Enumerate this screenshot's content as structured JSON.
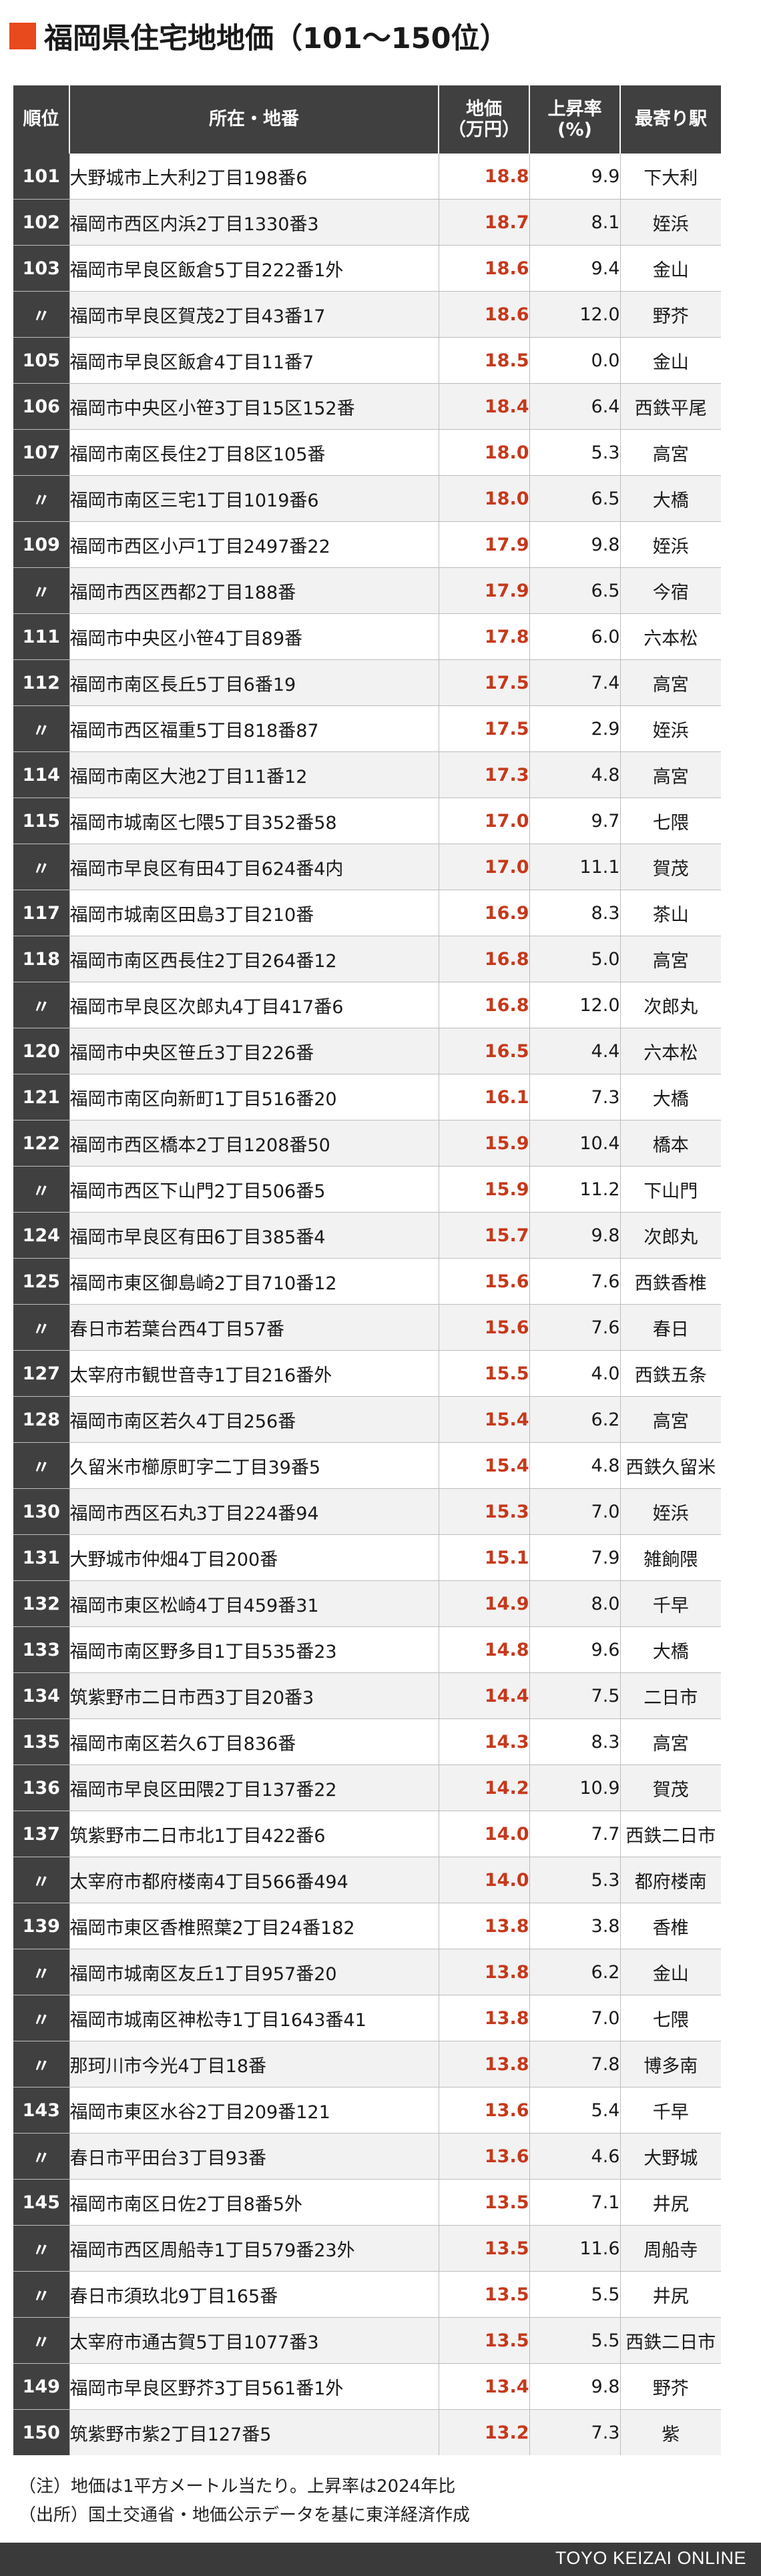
{
  "title": "福岡県住宅地地価（101〜150位）",
  "headers": {
    "rank": "順位",
    "address": "所在・地番",
    "price_line1": "地価",
    "price_line2": "（万円）",
    "rate_line1": "上昇率",
    "rate_line2": "(%)",
    "station": "最寄り駅"
  },
  "rows": [
    {
      "rank": "101",
      "address": "大野城市上大利2丁目198番6",
      "price": "18.8",
      "rate": "9.9",
      "station": "下大利"
    },
    {
      "rank": "102",
      "address": "福岡市西区内浜2丁目1330番3",
      "price": "18.7",
      "rate": "8.1",
      "station": "姪浜"
    },
    {
      "rank": "103",
      "address": "福岡市早良区飯倉5丁目222番1外",
      "price": "18.6",
      "rate": "9.4",
      "station": "金山"
    },
    {
      "rank": "〃",
      "address": "福岡市早良区賀茂2丁目43番17",
      "price": "18.6",
      "rate": "12.0",
      "station": "野芥"
    },
    {
      "rank": "105",
      "address": "福岡市早良区飯倉4丁目11番7",
      "price": "18.5",
      "rate": "0.0",
      "station": "金山"
    },
    {
      "rank": "106",
      "address": "福岡市中央区小笹3丁目15区152番",
      "price": "18.4",
      "rate": "6.4",
      "station": "西鉄平尾"
    },
    {
      "rank": "107",
      "address": "福岡市南区長住2丁目8区105番",
      "price": "18.0",
      "rate": "5.3",
      "station": "高宮"
    },
    {
      "rank": "〃",
      "address": "福岡市南区三宅1丁目1019番6",
      "price": "18.0",
      "rate": "6.5",
      "station": "大橋"
    },
    {
      "rank": "109",
      "address": "福岡市西区小戸1丁目2497番22",
      "price": "17.9",
      "rate": "9.8",
      "station": "姪浜"
    },
    {
      "rank": "〃",
      "address": "福岡市西区西都2丁目188番",
      "price": "17.9",
      "rate": "6.5",
      "station": "今宿"
    },
    {
      "rank": "111",
      "address": "福岡市中央区小笹4丁目89番",
      "price": "17.8",
      "rate": "6.0",
      "station": "六本松"
    },
    {
      "rank": "112",
      "address": "福岡市南区長丘5丁目6番19",
      "price": "17.5",
      "rate": "7.4",
      "station": "高宮"
    },
    {
      "rank": "〃",
      "address": "福岡市西区福重5丁目818番87",
      "price": "17.5",
      "rate": "2.9",
      "station": "姪浜"
    },
    {
      "rank": "114",
      "address": "福岡市南区大池2丁目11番12",
      "price": "17.3",
      "rate": "4.8",
      "station": "高宮"
    },
    {
      "rank": "115",
      "address": "福岡市城南区七隈5丁目352番58",
      "price": "17.0",
      "rate": "9.7",
      "station": "七隈"
    },
    {
      "rank": "〃",
      "address": "福岡市早良区有田4丁目624番4内",
      "price": "17.0",
      "rate": "11.1",
      "station": "賀茂"
    },
    {
      "rank": "117",
      "address": "福岡市城南区田島3丁目210番",
      "price": "16.9",
      "rate": "8.3",
      "station": "茶山"
    },
    {
      "rank": "118",
      "address": "福岡市南区西長住2丁目264番12",
      "price": "16.8",
      "rate": "5.0",
      "station": "高宮"
    },
    {
      "rank": "〃",
      "address": "福岡市早良区次郎丸4丁目417番6",
      "price": "16.8",
      "rate": "12.0",
      "station": "次郎丸"
    },
    {
      "rank": "120",
      "address": "福岡市中央区笹丘3丁目226番",
      "price": "16.5",
      "rate": "4.4",
      "station": "六本松"
    },
    {
      "rank": "121",
      "address": "福岡市南区向新町1丁目516番20",
      "price": "16.1",
      "rate": "7.3",
      "station": "大橋"
    },
    {
      "rank": "122",
      "address": "福岡市西区橋本2丁目1208番50",
      "price": "15.9",
      "rate": "10.4",
      "station": "橋本"
    },
    {
      "rank": "〃",
      "address": "福岡市西区下山門2丁目506番5",
      "price": "15.9",
      "rate": "11.2",
      "station": "下山門"
    },
    {
      "rank": "124",
      "address": "福岡市早良区有田6丁目385番4",
      "price": "15.7",
      "rate": "9.8",
      "station": "次郎丸"
    },
    {
      "rank": "125",
      "address": "福岡市東区御島崎2丁目710番12",
      "price": "15.6",
      "rate": "7.6",
      "station": "西鉄香椎"
    },
    {
      "rank": "〃",
      "address": "春日市若葉台西4丁目57番",
      "price": "15.6",
      "rate": "7.6",
      "station": "春日"
    },
    {
      "rank": "127",
      "address": "太宰府市観世音寺1丁目216番外",
      "price": "15.5",
      "rate": "4.0",
      "station": "西鉄五条"
    },
    {
      "rank": "128",
      "address": "福岡市南区若久4丁目256番",
      "price": "15.4",
      "rate": "6.2",
      "station": "高宮"
    },
    {
      "rank": "〃",
      "address": "久留米市櫛原町字二丁目39番5",
      "price": "15.4",
      "rate": "4.8",
      "station": "西鉄久留米"
    },
    {
      "rank": "130",
      "address": "福岡市西区石丸3丁目224番94",
      "price": "15.3",
      "rate": "7.0",
      "station": "姪浜"
    },
    {
      "rank": "131",
      "address": "大野城市仲畑4丁目200番",
      "price": "15.1",
      "rate": "7.9",
      "station": "雑餉隈"
    },
    {
      "rank": "132",
      "address": "福岡市東区松崎4丁目459番31",
      "price": "14.9",
      "rate": "8.0",
      "station": "千早"
    },
    {
      "rank": "133",
      "address": "福岡市南区野多目1丁目535番23",
      "price": "14.8",
      "rate": "9.6",
      "station": "大橋"
    },
    {
      "rank": "134",
      "address": "筑紫野市二日市西3丁目20番3",
      "price": "14.4",
      "rate": "7.5",
      "station": "二日市"
    },
    {
      "rank": "135",
      "address": "福岡市南区若久6丁目836番",
      "price": "14.3",
      "rate": "8.3",
      "station": "高宮"
    },
    {
      "rank": "136",
      "address": "福岡市早良区田隈2丁目137番22",
      "price": "14.2",
      "rate": "10.9",
      "station": "賀茂"
    },
    {
      "rank": "137",
      "address": "筑紫野市二日市北1丁目422番6",
      "price": "14.0",
      "rate": "7.7",
      "station": "西鉄二日市"
    },
    {
      "rank": "〃",
      "address": "太宰府市都府楼南4丁目566番494",
      "price": "14.0",
      "rate": "5.3",
      "station": "都府楼南"
    },
    {
      "rank": "139",
      "address": "福岡市東区香椎照葉2丁目24番182",
      "price": "13.8",
      "rate": "3.8",
      "station": "香椎"
    },
    {
      "rank": "〃",
      "address": "福岡市城南区友丘1丁目957番20",
      "price": "13.8",
      "rate": "6.2",
      "station": "金山"
    },
    {
      "rank": "〃",
      "address": "福岡市城南区神松寺1丁目1643番41",
      "price": "13.8",
      "rate": "7.0",
      "station": "七隈"
    },
    {
      "rank": "〃",
      "address": "那珂川市今光4丁目18番",
      "price": "13.8",
      "rate": "7.8",
      "station": "博多南"
    },
    {
      "rank": "143",
      "address": "福岡市東区水谷2丁目209番121",
      "price": "13.6",
      "rate": "5.4",
      "station": "千早"
    },
    {
      "rank": "〃",
      "address": "春日市平田台3丁目93番",
      "price": "13.6",
      "rate": "4.6",
      "station": "大野城"
    },
    {
      "rank": "145",
      "address": "福岡市南区日佐2丁目8番5外",
      "price": "13.5",
      "rate": "7.1",
      "station": "井尻"
    },
    {
      "rank": "〃",
      "address": "福岡市西区周船寺1丁目579番23外",
      "price": "13.5",
      "rate": "11.6",
      "station": "周船寺"
    },
    {
      "rank": "〃",
      "address": "春日市須玖北9丁目165番",
      "price": "13.5",
      "rate": "5.5",
      "station": "井尻"
    },
    {
      "rank": "〃",
      "address": "太宰府市通古賀5丁目1077番3",
      "price": "13.5",
      "rate": "5.5",
      "station": "西鉄二日市"
    },
    {
      "rank": "149",
      "address": "福岡市早良区野芥3丁目561番1外",
      "price": "13.4",
      "rate": "9.8",
      "station": "野芥"
    },
    {
      "rank": "150",
      "address": "筑紫野市紫2丁目127番5",
      "price": "13.2",
      "rate": "7.3",
      "station": "紫"
    }
  ],
  "notes": {
    "note1": "（注）地価は1平方メートル当たり。上昇率は2024年比",
    "note2": "（出所）国土交通省・地価公示データを基に東洋経済作成"
  },
  "footer": "TOYO KEIZAI ONLINE",
  "colors": {
    "accent": "#e8491d",
    "price_text": "#c7381a",
    "header_bg": "#404040"
  }
}
